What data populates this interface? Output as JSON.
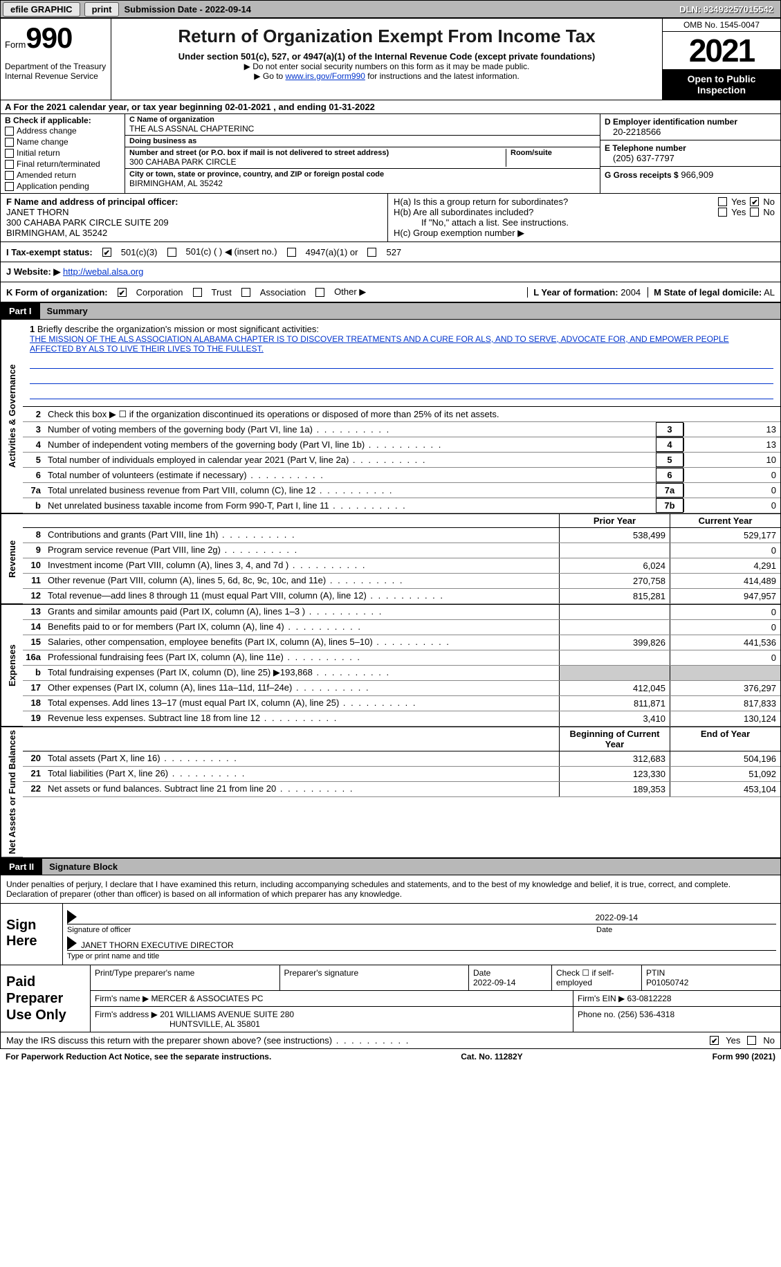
{
  "colors": {
    "link": "#0033cc",
    "topbar_bg": "#b8b8b8",
    "black": "#000000",
    "white": "#ffffff",
    "shade": "#cccccc"
  },
  "topbar": {
    "efile": "efile GRAPHIC",
    "print": "print",
    "submission_label": "Submission Date - 2022-09-14",
    "dln": "DLN: 93493257015542"
  },
  "header": {
    "form_small": "Form",
    "form_number": "990",
    "dept": "Department of the Treasury",
    "irs": "Internal Revenue Service",
    "title": "Return of Organization Exempt From Income Tax",
    "subtitle": "Under section 501(c), 527, or 4947(a)(1) of the Internal Revenue Code (except private foundations)",
    "hint1": "▶ Do not enter social security numbers on this form as it may be made public.",
    "hint2_pre": "▶ Go to ",
    "hint2_link": "www.irs.gov/Form990",
    "hint2_post": " for instructions and the latest information.",
    "omb": "OMB No. 1545-0047",
    "year": "2021",
    "open_pub": "Open to Public Inspection"
  },
  "row_a": "A For the 2021 calendar year, or tax year beginning 02-01-2021    , and ending 01-31-2022",
  "col_b": {
    "header": "B Check if applicable:",
    "items": [
      "Address change",
      "Name change",
      "Initial return",
      "Final return/terminated",
      "Amended return",
      "Application pending"
    ]
  },
  "col_c": {
    "name_lbl": "C Name of organization",
    "name": "THE ALS ASSNAL CHAPTERINC",
    "dba_lbl": "Doing business as",
    "dba": "",
    "street_lbl": "Number and street (or P.O. box if mail is not delivered to street address)",
    "street": "300 CAHABA PARK CIRCLE",
    "room_lbl": "Room/suite",
    "city_lbl": "City or town, state or province, country, and ZIP or foreign postal code",
    "city": "BIRMINGHAM, AL  35242"
  },
  "col_d": {
    "ein_lbl": "D Employer identification number",
    "ein": "20-2218566",
    "tel_lbl": "E Telephone number",
    "tel": "(205) 637-7797",
    "gross_lbl": "G Gross receipts $",
    "gross": "966,909"
  },
  "section_f": {
    "lbl": "F Name and address of principal officer:",
    "name": "JANET THORN",
    "addr1": "300 CAHABA PARK CIRCLE SUITE 209",
    "addr2": "BIRMINGHAM, AL  35242"
  },
  "section_h": {
    "a_lbl": "H(a)  Is this a group return for subordinates?",
    "b_lbl": "H(b)  Are all subordinates included?",
    "b_note": "If \"No,\" attach a list. See instructions.",
    "c_lbl": "H(c)  Group exemption number ▶",
    "yes": "Yes",
    "no": "No"
  },
  "tax_status": {
    "lbl": "I    Tax-exempt status:",
    "o1": "501(c)(3)",
    "o2": "501(c) (  ) ◀ (insert no.)",
    "o3": "4947(a)(1) or",
    "o4": "527"
  },
  "website": {
    "lbl": "J   Website: ▶",
    "url": "http://webal.alsa.org"
  },
  "row_k": {
    "lbl": "K Form of organization:",
    "o1": "Corporation",
    "o2": "Trust",
    "o3": "Association",
    "o4": "Other ▶",
    "l_lbl": "L Year of formation:",
    "l_val": "2004",
    "m_lbl": "M State of legal domicile:",
    "m_val": "AL"
  },
  "part1": {
    "num": "Part I",
    "title": "Summary"
  },
  "summary": {
    "gov_label": "Activities & Governance",
    "rev_label": "Revenue",
    "exp_label": "Expenses",
    "nab_label": "Net Assets or Fund Balances",
    "line1_lbl": "Briefly describe the organization's mission or most significant activities:",
    "mission": "THE MISSION OF THE ALS ASSOCIATION ALABAMA CHAPTER IS TO DISCOVER TREATMENTS AND A CURE FOR ALS, AND TO SERVE, ADVOCATE FOR, AND EMPOWER PEOPLE AFFECTED BY ALS TO LIVE THEIR LIVES TO THE FULLEST.",
    "line2": "Check this box ▶ ☐ if the organization discontinued its operations or disposed of more than 25% of its net assets.",
    "lines_gov": [
      {
        "n": "3",
        "desc": "Number of voting members of the governing body (Part VI, line 1a)",
        "box": "3",
        "val": "13"
      },
      {
        "n": "4",
        "desc": "Number of independent voting members of the governing body (Part VI, line 1b)",
        "box": "4",
        "val": "13"
      },
      {
        "n": "5",
        "desc": "Total number of individuals employed in calendar year 2021 (Part V, line 2a)",
        "box": "5",
        "val": "10"
      },
      {
        "n": "6",
        "desc": "Total number of volunteers (estimate if necessary)",
        "box": "6",
        "val": "0"
      },
      {
        "n": "7a",
        "desc": "Total unrelated business revenue from Part VIII, column (C), line 12",
        "box": "7a",
        "val": "0"
      },
      {
        "n": "b",
        "desc": "Net unrelated business taxable income from Form 990-T, Part I, line 11",
        "box": "7b",
        "val": "0"
      }
    ],
    "py_hdr": "Prior Year",
    "cy_hdr": "Current Year",
    "lines_rev": [
      {
        "n": "8",
        "desc": "Contributions and grants (Part VIII, line 1h)",
        "pv": "538,499",
        "cv": "529,177"
      },
      {
        "n": "9",
        "desc": "Program service revenue (Part VIII, line 2g)",
        "pv": "",
        "cv": "0"
      },
      {
        "n": "10",
        "desc": "Investment income (Part VIII, column (A), lines 3, 4, and 7d )",
        "pv": "6,024",
        "cv": "4,291"
      },
      {
        "n": "11",
        "desc": "Other revenue (Part VIII, column (A), lines 5, 6d, 8c, 9c, 10c, and 11e)",
        "pv": "270,758",
        "cv": "414,489"
      },
      {
        "n": "12",
        "desc": "Total revenue—add lines 8 through 11 (must equal Part VIII, column (A), line 12)",
        "pv": "815,281",
        "cv": "947,957"
      }
    ],
    "lines_exp": [
      {
        "n": "13",
        "desc": "Grants and similar amounts paid (Part IX, column (A), lines 1–3 )",
        "pv": "",
        "cv": "0"
      },
      {
        "n": "14",
        "desc": "Benefits paid to or for members (Part IX, column (A), line 4)",
        "pv": "",
        "cv": "0"
      },
      {
        "n": "15",
        "desc": "Salaries, other compensation, employee benefits (Part IX, column (A), lines 5–10)",
        "pv": "399,826",
        "cv": "441,536"
      },
      {
        "n": "16a",
        "desc": "Professional fundraising fees (Part IX, column (A), line 11e)",
        "pv": "",
        "cv": "0"
      },
      {
        "n": "b",
        "desc": "Total fundraising expenses (Part IX, column (D), line 25) ▶193,868",
        "pv": "shade",
        "cv": "shade"
      },
      {
        "n": "17",
        "desc": "Other expenses (Part IX, column (A), lines 11a–11d, 11f–24e)",
        "pv": "412,045",
        "cv": "376,297"
      },
      {
        "n": "18",
        "desc": "Total expenses. Add lines 13–17 (must equal Part IX, column (A), line 25)",
        "pv": "811,871",
        "cv": "817,833"
      },
      {
        "n": "19",
        "desc": "Revenue less expenses. Subtract line 18 from line 12",
        "pv": "3,410",
        "cv": "130,124"
      }
    ],
    "boy_hdr": "Beginning of Current Year",
    "eoy_hdr": "End of Year",
    "lines_nab": [
      {
        "n": "20",
        "desc": "Total assets (Part X, line 16)",
        "pv": "312,683",
        "cv": "504,196"
      },
      {
        "n": "21",
        "desc": "Total liabilities (Part X, line 26)",
        "pv": "123,330",
        "cv": "51,092"
      },
      {
        "n": "22",
        "desc": "Net assets or fund balances. Subtract line 21 from line 20",
        "pv": "189,353",
        "cv": "453,104"
      }
    ]
  },
  "part2": {
    "num": "Part II",
    "title": "Signature Block"
  },
  "sig": {
    "decl": "Under penalties of perjury, I declare that I have examined this return, including accompanying schedules and statements, and to the best of my knowledge and belief, it is true, correct, and complete. Declaration of preparer (other than officer) is based on all information of which preparer has any knowledge.",
    "sign_here": "Sign Here",
    "sig_of_officer": "Signature of officer",
    "date": "2022-09-14",
    "date_lbl": "Date",
    "officer_name": "JANET THORN  EXECUTIVE DIRECTOR",
    "type_name": "Type or print name and title"
  },
  "prep": {
    "lbl": "Paid Preparer Use Only",
    "print_lbl": "Print/Type preparer's name",
    "print_val": "",
    "sig_lbl": "Preparer's signature",
    "date_lbl": "Date",
    "date_val": "2022-09-14",
    "check_lbl": "Check ☐ if self-employed",
    "ptin_lbl": "PTIN",
    "ptin_val": "P01050742",
    "firm_name_lbl": "Firm's name    ▶",
    "firm_name": "MERCER & ASSOCIATES PC",
    "firm_ein_lbl": "Firm's EIN ▶",
    "firm_ein": "63-0812228",
    "firm_addr_lbl": "Firm's address ▶",
    "firm_addr1": "201 WILLIAMS AVENUE SUITE 280",
    "firm_addr2": "HUNTSVILLE, AL  35801",
    "phone_lbl": "Phone no.",
    "phone": "(256) 536-4318"
  },
  "discuss": {
    "text": "May the IRS discuss this return with the preparer shown above? (see instructions)",
    "yes": "Yes",
    "no": "No"
  },
  "footer": {
    "left": "For Paperwork Reduction Act Notice, see the separate instructions.",
    "mid": "Cat. No. 11282Y",
    "right": "Form 990 (2021)"
  }
}
